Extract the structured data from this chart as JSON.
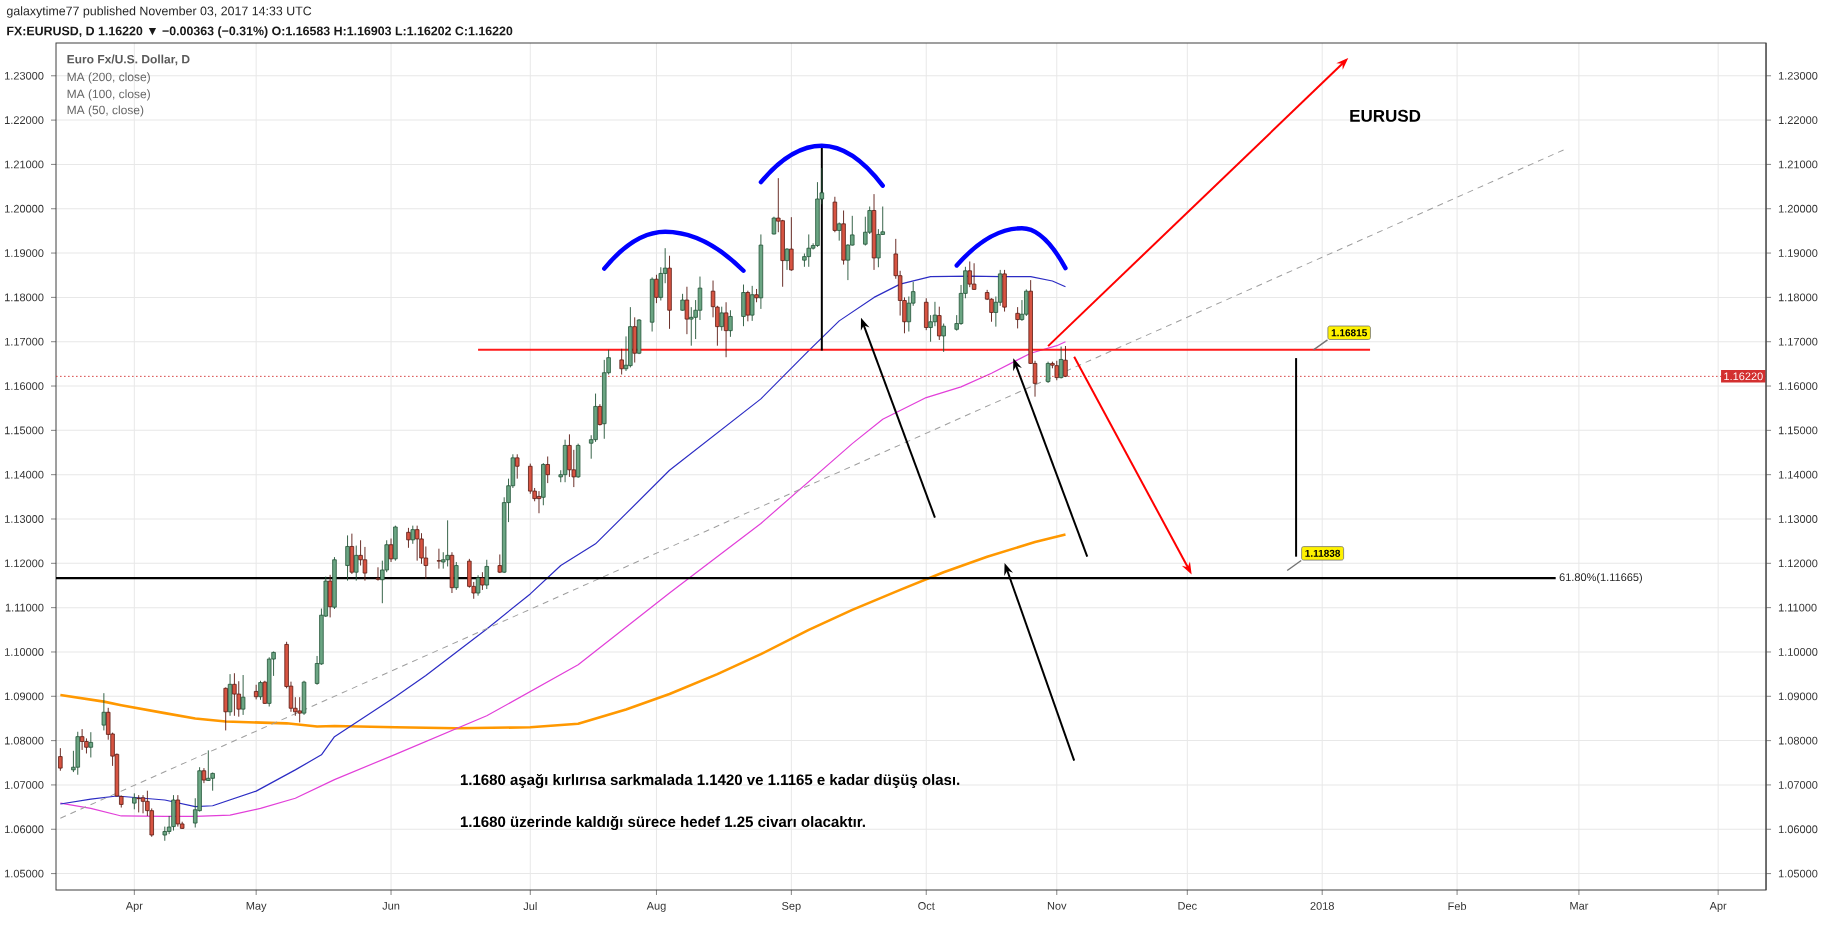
{
  "chart_data": {
    "type": "candlestick",
    "title": "galaxytime77 published November 03, 2017 14:33 UTC",
    "subtitle": "FX:EURUSD, D 1.16220 ▼ −0.00363 (−0.31%) O:1.16583 H:1.16903 L:1.16202 C:1.16220",
    "annotations": [
      "Euro Fx/U.S. Dollar, D",
      "MA (200, close)",
      "MA (100, close)",
      "MA (50, close)",
      "EURUSD",
      "1.1680 aşağı kırlırısa sarkmalada 1.1420 ve 1.1165 e kadar düşüş olası.",
      "1.1680 üzerinde kaldığı sürece hedef 1.25 civarı olacaktır.",
      {
        "text": "1.16815",
        "x": "2017-12-30",
        "y": 1.16815
      },
      "1.11838"
    ],
    "x": [
      "2017-03-17",
      "2017-03-20",
      "2017-03-21",
      "2017-03-22",
      "2017-03-23",
      "2017-03-24",
      "2017-03-27",
      "2017-03-28",
      "2017-03-29",
      "2017-03-30",
      "2017-03-31",
      "2017-04-03",
      "2017-04-04",
      "2017-04-05",
      "2017-04-06",
      "2017-04-07",
      "2017-04-10",
      "2017-04-11",
      "2017-04-12",
      "2017-04-13",
      "2017-04-14",
      "2017-04-17",
      "2017-04-18",
      "2017-04-19",
      "2017-04-20",
      "2017-04-21",
      "2017-04-24",
      "2017-04-25",
      "2017-04-26",
      "2017-04-27",
      "2017-04-28",
      "2017-05-01",
      "2017-05-02",
      "2017-05-03",
      "2017-05-04",
      "2017-05-05",
      "2017-05-08",
      "2017-05-09",
      "2017-05-10",
      "2017-05-11",
      "2017-05-12",
      "2017-05-15",
      "2017-05-16",
      "2017-05-17",
      "2017-05-18",
      "2017-05-19",
      "2017-05-22",
      "2017-05-23",
      "2017-05-24",
      "2017-05-25",
      "2017-05-26",
      "2017-05-29",
      "2017-05-30",
      "2017-05-31",
      "2017-06-01",
      "2017-06-02",
      "2017-06-05",
      "2017-06-06",
      "2017-06-07",
      "2017-06-08",
      "2017-06-09",
      "2017-06-12",
      "2017-06-13",
      "2017-06-14",
      "2017-06-15",
      "2017-06-16",
      "2017-06-19",
      "2017-06-20",
      "2017-06-21",
      "2017-06-22",
      "2017-06-23",
      "2017-06-26",
      "2017-06-27",
      "2017-06-28",
      "2017-06-29",
      "2017-06-30",
      "2017-07-03",
      "2017-07-04",
      "2017-07-05",
      "2017-07-06",
      "2017-07-07",
      "2017-07-10",
      "2017-07-11",
      "2017-07-12",
      "2017-07-13",
      "2017-07-14",
      "2017-07-17",
      "2017-07-18",
      "2017-07-19",
      "2017-07-20",
      "2017-07-21",
      "2017-07-24",
      "2017-07-25",
      "2017-07-26",
      "2017-07-27",
      "2017-07-28",
      "2017-07-31",
      "2017-08-01",
      "2017-08-02",
      "2017-08-03",
      "2017-08-04",
      "2017-08-07",
      "2017-08-08",
      "2017-08-09",
      "2017-08-10",
      "2017-08-11",
      "2017-08-14",
      "2017-08-15",
      "2017-08-16",
      "2017-08-17",
      "2017-08-18",
      "2017-08-21",
      "2017-08-22",
      "2017-08-23",
      "2017-08-24",
      "2017-08-25",
      "2017-08-28",
      "2017-08-29",
      "2017-08-30",
      "2017-08-31",
      "2017-09-01",
      "2017-09-04",
      "2017-09-05",
      "2017-09-06",
      "2017-09-07",
      "2017-09-08",
      "2017-09-11",
      "2017-09-12",
      "2017-09-13",
      "2017-09-14",
      "2017-09-15",
      "2017-09-18",
      "2017-09-19",
      "2017-09-20",
      "2017-09-21",
      "2017-09-22",
      "2017-09-25",
      "2017-09-26",
      "2017-09-27",
      "2017-09-28",
      "2017-09-29",
      "2017-10-02",
      "2017-10-03",
      "2017-10-04",
      "2017-10-05",
      "2017-10-06",
      "2017-10-09",
      "2017-10-10",
      "2017-10-11",
      "2017-10-12",
      "2017-10-13",
      "2017-10-16",
      "2017-10-17",
      "2017-10-18",
      "2017-10-19",
      "2017-10-20",
      "2017-10-23",
      "2017-10-24",
      "2017-10-25",
      "2017-10-26",
      "2017-10-27",
      "2017-10-30",
      "2017-10-31",
      "2017-11-01",
      "2017-11-02",
      "2017-11-03"
    ],
    "ohlc": [
      [
        1.0764,
        1.0783,
        1.0732,
        1.0738
      ],
      [
        1.0734,
        1.0777,
        1.0729,
        1.074
      ],
      [
        1.074,
        1.082,
        1.0723,
        1.0809
      ],
      [
        1.0809,
        1.0826,
        1.0779,
        1.0798
      ],
      [
        1.0798,
        1.0805,
        1.0771,
        1.0785
      ],
      [
        1.0785,
        1.0819,
        1.0762,
        1.0796
      ],
      [
        1.0835,
        1.0907,
        1.0823,
        1.0864
      ],
      [
        1.0864,
        1.0874,
        1.0802,
        1.0814
      ],
      [
        1.0815,
        1.0818,
        1.0743,
        1.0765
      ],
      [
        1.0769,
        1.0771,
        1.0674,
        1.0675
      ],
      [
        1.0674,
        1.0676,
        1.0649,
        1.0656
      ],
      [
        1.0659,
        1.0681,
        1.0645,
        1.0671
      ],
      [
        1.067,
        1.0677,
        1.0638,
        1.0669
      ],
      [
        1.0671,
        1.0677,
        1.0636,
        1.0663
      ],
      [
        1.0663,
        1.0687,
        1.063,
        1.0642
      ],
      [
        1.0642,
        1.0647,
        1.0583,
        1.0587
      ],
      [
        1.0587,
        1.0606,
        1.0574,
        1.0595
      ],
      [
        1.0595,
        1.063,
        1.0589,
        1.0605
      ],
      [
        1.0606,
        1.0677,
        1.0597,
        1.0666
      ],
      [
        1.0666,
        1.0677,
        1.0606,
        1.0612
      ],
      [
        1.0612,
        1.0617,
        1.0601,
        1.0602
      ],
      [
        1.0614,
        1.067,
        1.0604,
        1.0644
      ],
      [
        1.0642,
        1.074,
        1.064,
        1.0732
      ],
      [
        1.0732,
        1.0738,
        1.0704,
        1.0711
      ],
      [
        1.071,
        1.0778,
        1.0709,
        1.0715
      ],
      [
        1.0715,
        1.0728,
        1.0687,
        1.0726
      ],
      [
        1.0918,
        1.092,
        1.0823,
        1.0865
      ],
      [
        1.0865,
        1.095,
        1.0856,
        1.0927
      ],
      [
        1.0927,
        1.0952,
        1.0856,
        1.0905
      ],
      [
        1.0905,
        1.0934,
        1.0854,
        1.0871
      ],
      [
        1.0871,
        1.0948,
        1.0858,
        1.0898
      ],
      [
        1.0911,
        1.0926,
        1.0893,
        1.0899
      ],
      [
        1.0899,
        1.0935,
        1.0892,
        1.0931
      ],
      [
        1.0932,
        1.0935,
        1.0883,
        1.0884
      ],
      [
        1.0884,
        1.0988,
        1.0877,
        1.0984
      ],
      [
        1.0984,
        1.1001,
        1.0946,
        1.0999
      ],
      [
        1.1017,
        1.1023,
        1.0918,
        1.0922
      ],
      [
        1.0923,
        1.0933,
        1.0865,
        1.0873
      ],
      [
        1.0873,
        1.0898,
        1.0856,
        1.0865
      ],
      [
        1.0867,
        1.0898,
        1.0841,
        1.0862
      ],
      [
        1.0862,
        1.0935,
        1.0858,
        1.0932
      ],
      [
        1.0929,
        1.0991,
        1.0926,
        1.0974
      ],
      [
        1.0973,
        1.1098,
        1.0971,
        1.1083
      ],
      [
        1.1081,
        1.117,
        1.1079,
        1.116
      ],
      [
        1.116,
        1.1174,
        1.1078,
        1.1102
      ],
      [
        1.1101,
        1.1214,
        1.1097,
        1.1208
      ],
      [
        1.1195,
        1.1263,
        1.1161,
        1.1238
      ],
      [
        1.1238,
        1.1267,
        1.1176,
        1.118
      ],
      [
        1.118,
        1.124,
        1.1161,
        1.1218
      ],
      [
        1.1218,
        1.1252,
        1.1195,
        1.1208
      ],
      [
        1.1208,
        1.1237,
        1.1161,
        1.1178
      ],
      [
        1.1166,
        1.1191,
        1.1161,
        1.1164
      ],
      [
        1.1163,
        1.1206,
        1.111,
        1.1185
      ],
      [
        1.1185,
        1.1252,
        1.118,
        1.1242
      ],
      [
        1.1242,
        1.1256,
        1.1203,
        1.121
      ],
      [
        1.121,
        1.1285,
        1.1206,
        1.1282
      ],
      [
        1.127,
        1.128,
        1.1235,
        1.1253
      ],
      [
        1.1253,
        1.1285,
        1.1244,
        1.1276
      ],
      [
        1.1276,
        1.1285,
        1.1206,
        1.1255
      ],
      [
        1.1255,
        1.1268,
        1.1199,
        1.1212
      ],
      [
        1.1212,
        1.1238,
        1.1165,
        1.1195
      ],
      [
        1.1206,
        1.1233,
        1.1188,
        1.1205
      ],
      [
        1.1203,
        1.1225,
        1.1188,
        1.1208
      ],
      [
        1.1208,
        1.1297,
        1.1193,
        1.1218
      ],
      [
        1.1218,
        1.1225,
        1.1133,
        1.1145
      ],
      [
        1.1145,
        1.1203,
        1.114,
        1.1195
      ],
      [
        1.1205,
        1.121,
        1.1145,
        1.1148
      ],
      [
        1.1148,
        1.1158,
        1.112,
        1.1133
      ],
      [
        1.1133,
        1.1173,
        1.1127,
        1.1167
      ],
      [
        1.1167,
        1.118,
        1.114,
        1.1151
      ],
      [
        1.1151,
        1.1208,
        1.1142,
        1.1193
      ],
      [
        1.1195,
        1.122,
        1.1178,
        1.118
      ],
      [
        1.118,
        1.1349,
        1.1178,
        1.1337
      ],
      [
        1.1337,
        1.1391,
        1.1293,
        1.1375
      ],
      [
        1.1375,
        1.1446,
        1.137,
        1.1438
      ],
      [
        1.1438,
        1.1446,
        1.1391,
        1.1419
      ],
      [
        1.1419,
        1.1425,
        1.1357,
        1.1363
      ],
      [
        1.1363,
        1.137,
        1.134,
        1.1346
      ],
      [
        1.1351,
        1.1363,
        1.1313,
        1.1346
      ],
      [
        1.1349,
        1.1426,
        1.1331,
        1.1423
      ],
      [
        1.1423,
        1.1441,
        1.1381,
        1.14
      ],
      [
        1.1395,
        1.141,
        1.1383,
        1.14
      ],
      [
        1.14,
        1.1479,
        1.1383,
        1.1466
      ],
      [
        1.1466,
        1.1491,
        1.1395,
        1.1411
      ],
      [
        1.1411,
        1.1456,
        1.1372,
        1.1395
      ],
      [
        1.1395,
        1.147,
        1.1393,
        1.1466
      ],
      [
        1.1471,
        1.1489,
        1.1436,
        1.1479
      ],
      [
        1.1479,
        1.1583,
        1.1474,
        1.1554
      ],
      [
        1.1554,
        1.1559,
        1.1511,
        1.1513
      ],
      [
        1.1515,
        1.1659,
        1.1481,
        1.163
      ],
      [
        1.163,
        1.1682,
        1.1626,
        1.1664
      ],
      [
        1.1659,
        1.1684,
        1.1626,
        1.1639
      ],
      [
        1.1639,
        1.1712,
        1.1634,
        1.1647
      ],
      [
        1.1646,
        1.1778,
        1.1642,
        1.1734
      ],
      [
        1.1734,
        1.1755,
        1.1653,
        1.1674
      ],
      [
        1.1674,
        1.1751,
        1.1672,
        1.1749
      ],
      [
        1.1744,
        1.1845,
        1.1723,
        1.1841
      ],
      [
        1.1841,
        1.1851,
        1.1787,
        1.18
      ],
      [
        1.18,
        1.1868,
        1.1793,
        1.1854
      ],
      [
        1.1854,
        1.1911,
        1.1832,
        1.1866
      ],
      [
        1.1866,
        1.1894,
        1.1729,
        1.1771
      ],
      [
        1.1771,
        1.1808,
        1.177,
        1.1794
      ],
      [
        1.1794,
        1.1824,
        1.1717,
        1.1751
      ],
      [
        1.1751,
        1.1778,
        1.1691,
        1.1755
      ],
      [
        1.1755,
        1.1794,
        1.1706,
        1.1771
      ],
      [
        1.1771,
        1.1847,
        1.1749,
        1.1821
      ],
      [
        1.1814,
        1.1838,
        1.1755,
        1.1779
      ],
      [
        1.1778,
        1.1781,
        1.1691,
        1.1734
      ],
      [
        1.1734,
        1.1779,
        1.1725,
        1.1765
      ],
      [
        1.1765,
        1.1789,
        1.1665,
        1.1725
      ],
      [
        1.1725,
        1.1771,
        1.1711,
        1.1757
      ],
      [
        1.1757,
        1.1829,
        1.1735,
        1.1811
      ],
      [
        1.1811,
        1.1815,
        1.1746,
        1.176
      ],
      [
        1.176,
        1.1826,
        1.1747,
        1.1806
      ],
      [
        1.1806,
        1.1819,
        1.1789,
        1.1799
      ],
      [
        1.1799,
        1.1942,
        1.1774,
        1.1918
      ],
      [
        1.1943,
        1.1982,
        1.1942,
        1.1979
      ],
      [
        1.1979,
        1.2069,
        1.1947,
        1.1972
      ],
      [
        1.1973,
        1.1975,
        1.1824,
        1.1883
      ],
      [
        1.1883,
        1.1911,
        1.1862,
        1.1909
      ],
      [
        1.1909,
        1.1981,
        1.186,
        1.1862
      ],
      [
        1.1884,
        1.1899,
        1.1869,
        1.1892
      ],
      [
        1.1892,
        1.1942,
        1.1869,
        1.1911
      ],
      [
        1.1911,
        1.1922,
        1.1908,
        1.1917
      ],
      [
        1.1917,
        1.206,
        1.1914,
        1.2022
      ],
      [
        1.2022,
        1.2092,
        1.201,
        1.2036
      ],
      [
        1.2015,
        1.2027,
        1.1947,
        1.1951
      ],
      [
        1.1951,
        1.1969,
        1.1928,
        1.1966
      ],
      [
        1.1966,
        1.1996,
        1.1874,
        1.1884
      ],
      [
        1.1884,
        1.192,
        1.1839,
        1.1918
      ],
      [
        1.1918,
        1.1984,
        1.1917,
        1.1941
      ],
      [
        1.192,
        1.1982,
        1.1917,
        1.1947
      ],
      [
        1.1947,
        1.2005,
        1.1943,
        1.1996
      ],
      [
        1.1996,
        1.2033,
        1.1862,
        1.1889
      ],
      [
        1.1889,
        1.1954,
        1.1868,
        1.1942
      ],
      [
        1.1942,
        1.2005,
        1.1941,
        1.1948
      ],
      [
        1.1898,
        1.1932,
        1.1842,
        1.1849
      ],
      [
        1.1849,
        1.186,
        1.1759,
        1.1793
      ],
      [
        1.1793,
        1.18,
        1.1719,
        1.1745
      ],
      [
        1.1745,
        1.1802,
        1.1723,
        1.1787
      ],
      [
        1.1787,
        1.1835,
        1.1781,
        1.1813
      ],
      [
        1.1789,
        1.1798,
        1.1726,
        1.1732
      ],
      [
        1.1732,
        1.176,
        1.17,
        1.1745
      ],
      [
        1.1745,
        1.179,
        1.1735,
        1.176
      ],
      [
        1.1759,
        1.1779,
        1.1704,
        1.1713
      ],
      [
        1.1713,
        1.1741,
        1.1677,
        1.1735
      ],
      [
        1.1728,
        1.176,
        1.1725,
        1.1741
      ],
      [
        1.1741,
        1.1828,
        1.1738,
        1.1809
      ],
      [
        1.1809,
        1.1869,
        1.1798,
        1.186
      ],
      [
        1.186,
        1.1881,
        1.1823,
        1.183
      ],
      [
        1.183,
        1.1877,
        1.1817,
        1.1818
      ],
      [
        1.1811,
        1.1817,
        1.1794,
        1.1796
      ],
      [
        1.1796,
        1.1798,
        1.1745,
        1.1766
      ],
      [
        1.1766,
        1.1802,
        1.1734,
        1.1789
      ],
      [
        1.1789,
        1.1862,
        1.1781,
        1.1853
      ],
      [
        1.1853,
        1.1862,
        1.1768,
        1.1778
      ],
      [
        1.1764,
        1.1778,
        1.173,
        1.175
      ],
      [
        1.175,
        1.1794,
        1.1747,
        1.1762
      ],
      [
        1.1762,
        1.1818,
        1.1758,
        1.1814
      ],
      [
        1.1814,
        1.1839,
        1.165,
        1.1651
      ],
      [
        1.1651,
        1.1657,
        1.1576,
        1.1606
      ],
      [
        1.161,
        1.1655,
        1.1607,
        1.1651
      ],
      [
        1.1651,
        1.1655,
        1.164,
        1.1647
      ],
      [
        1.1646,
        1.1657,
        1.1613,
        1.1619
      ],
      [
        1.1619,
        1.1689,
        1.1617,
        1.166
      ],
      [
        1.16583,
        1.16903,
        1.16202,
        1.1622
      ]
    ],
    "series": [
      {
        "type": "line",
        "color": "#ff9800",
        "x": [
          "2017-03-17",
          "2017-03-27",
          "2017-03-31",
          "2017-04-10",
          "2017-04-17",
          "2017-04-24",
          "2017-05-01",
          "2017-05-08",
          "2017-05-15",
          "2017-05-19",
          "2017-06-02",
          "2017-06-16",
          "2017-07-03",
          "2017-07-14",
          "2017-07-25",
          "2017-08-04",
          "2017-08-15",
          "2017-08-25",
          "2017-09-05",
          "2017-09-15",
          "2017-09-26",
          "2017-10-06",
          "2017-10-16",
          "2017-10-27",
          "2017-11-03"
        ],
        "values": [
          1.0903,
          1.0888,
          1.088,
          1.0862,
          1.085,
          1.0843,
          1.0841,
          1.0839,
          1.0832,
          1.0833,
          1.083,
          1.0828,
          1.083,
          1.0838,
          1.087,
          1.0905,
          1.095,
          1.0995,
          1.105,
          1.1095,
          1.114,
          1.118,
          1.1215,
          1.1248,
          1.1265
        ]
      },
      {
        "type": "line",
        "color": "#e23fd9",
        "x": [
          "2017-03-17",
          "2017-03-24",
          "2017-03-31",
          "2017-04-10",
          "2017-04-17",
          "2017-04-25",
          "2017-05-02",
          "2017-05-10",
          "2017-05-19",
          "2017-06-02",
          "2017-06-23",
          "2017-07-14",
          "2017-08-04",
          "2017-08-25",
          "2017-09-15",
          "2017-09-22",
          "2017-10-02",
          "2017-10-10",
          "2017-10-17",
          "2017-10-23",
          "2017-10-26",
          "2017-11-01",
          "2017-11-03"
        ],
        "values": [
          1.0659,
          1.0647,
          1.063,
          1.0629,
          1.0629,
          1.0632,
          1.0647,
          1.067,
          1.0712,
          1.0769,
          1.0856,
          1.0971,
          1.1133,
          1.129,
          1.147,
          1.1525,
          1.1574,
          1.1598,
          1.1629,
          1.1659,
          1.1674,
          1.1691,
          1.17
        ]
      },
      {
        "type": "line",
        "color": "#2c2cc4",
        "x": [
          "2017-03-17",
          "2017-03-24",
          "2017-03-30",
          "2017-04-10",
          "2017-04-17",
          "2017-04-21",
          "2017-05-01",
          "2017-05-10",
          "2017-05-16",
          "2017-05-19",
          "2017-06-02",
          "2017-06-09",
          "2017-06-23",
          "2017-07-03",
          "2017-07-10",
          "2017-07-18",
          "2017-07-25",
          "2017-08-04",
          "2017-08-25",
          "2017-09-05",
          "2017-09-12",
          "2017-09-20",
          "2017-09-26",
          "2017-10-03",
          "2017-10-12",
          "2017-10-19",
          "2017-10-26",
          "2017-10-31",
          "2017-11-03"
        ],
        "values": [
          1.0657,
          1.0668,
          1.0675,
          1.0666,
          1.0651,
          1.0653,
          1.0686,
          1.0734,
          1.0768,
          1.0809,
          1.0899,
          1.0947,
          1.1052,
          1.1131,
          1.1195,
          1.1244,
          1.1312,
          1.141,
          1.1571,
          1.168,
          1.1747,
          1.18,
          1.183,
          1.1847,
          1.1848,
          1.1847,
          1.1847,
          1.1837,
          1.1824
        ]
      },
      {
        "type": "line",
        "color": "#9e9e9e",
        "line_style": "dashed",
        "x": [
          "2017-03-17",
          "2018-02-26"
        ],
        "values": [
          1.0625,
          1.2135
        ]
      },
      {
        "type": "line",
        "color": "#ff1a1a",
        "x": [
          "2017-06-21",
          "2018-01-12"
        ],
        "values": [
          1.1682,
          1.1682
        ]
      },
      {
        "type": "line",
        "color": "#000000",
        "x": [
          "2017-09-08",
          "2017-09-08"
        ],
        "values": [
          1.2142,
          1.168
        ]
      }
    ],
    "xlim": [
      "2017-03-16",
      "2018-04-13"
    ],
    "xticks": [
      {
        "value": "2017-04-03",
        "label": "Apr"
      },
      {
        "value": "2017-05-01",
        "label": "May"
      },
      {
        "value": "2017-06-01",
        "label": "Jun"
      },
      {
        "value": "2017-07-03",
        "label": "Jul"
      },
      {
        "value": "2017-08-01",
        "label": "Aug"
      },
      {
        "value": "2017-09-01",
        "label": "Sep"
      },
      {
        "value": "2017-10-02",
        "label": "Oct"
      },
      {
        "value": "2017-11-01",
        "label": "Nov"
      },
      {
        "value": "2017-12-01",
        "label": "Dec"
      },
      {
        "value": "2018-01-01",
        "label": "2018"
      },
      {
        "value": "2018-02-01",
        "label": "Feb"
      },
      {
        "value": "2018-03-01",
        "label": "Mar"
      },
      {
        "value": "2018-04-02",
        "label": "Apr"
      }
    ],
    "ylim": [
      1.0463,
      1.2374
    ],
    "yticks": [
      {
        "value": 1.05,
        "label": "1.05000"
      },
      {
        "value": 1.06,
        "label": "1.06000"
      },
      {
        "value": 1.07,
        "label": "1.07000"
      },
      {
        "value": 1.08,
        "label": "1.08000"
      },
      {
        "value": 1.09,
        "label": "1.09000"
      },
      {
        "value": 1.1,
        "label": "1.10000"
      },
      {
        "value": 1.11,
        "label": "1.11000"
      },
      {
        "value": 1.12,
        "label": "1.12000"
      },
      {
        "value": 1.13,
        "label": "1.13000"
      },
      {
        "value": 1.14,
        "label": "1.14000"
      },
      {
        "value": 1.15,
        "label": "1.15000"
      },
      {
        "value": 1.16,
        "label": "1.16000"
      },
      {
        "value": 1.17,
        "label": "1.17000"
      },
      {
        "value": 1.18,
        "label": "1.18000"
      },
      {
        "value": 1.19,
        "label": "1.19000"
      },
      {
        "value": 1.2,
        "label": "1.20000"
      },
      {
        "value": 1.21,
        "label": "1.21000"
      },
      {
        "value": 1.22,
        "label": "1.22000"
      },
      {
        "value": 1.23,
        "label": "1.23000"
      }
    ],
    "y2lim": [
      1.0463,
      1.2374
    ],
    "y2ticks": [
      {
        "value": 1.05,
        "label": "1.05000"
      },
      {
        "value": 1.06,
        "label": "1.06000"
      },
      {
        "value": 1.07,
        "label": "1.07000"
      },
      {
        "value": 1.08,
        "label": "1.08000"
      },
      {
        "value": 1.09,
        "label": "1.09000"
      },
      {
        "value": 1.1,
        "label": "1.10000"
      },
      {
        "value": 1.11,
        "label": "1.11000"
      },
      {
        "value": 1.12,
        "label": "1.12000"
      },
      {
        "value": 1.13,
        "label": "1.13000"
      },
      {
        "value": 1.14,
        "label": "1.14000"
      },
      {
        "value": 1.15,
        "label": "1.15000"
      },
      {
        "value": 1.16,
        "label": "1.16000"
      },
      {
        "value": 1.17,
        "label": "1.17000"
      },
      {
        "value": 1.18,
        "label": "1.18000"
      },
      {
        "value": 1.19,
        "label": "1.19000"
      },
      {
        "value": 1.2,
        "label": "1.20000"
      },
      {
        "value": 1.21,
        "label": "1.21000"
      },
      {
        "value": 1.22,
        "label": "1.22000"
      },
      {
        "value": 1.23,
        "label": "1.23000"
      }
    ],
    "ref_lines": [
      {
        "axis": "y",
        "value": 1.11665,
        "label": "61.80%(1.11665)",
        "color": "#000000"
      },
      {
        "axis": "y",
        "value": 1.1622,
        "label": "1.16220",
        "color": "#d32f2f",
        "line_style": "dotted"
      }
    ],
    "grid": true
  }
}
